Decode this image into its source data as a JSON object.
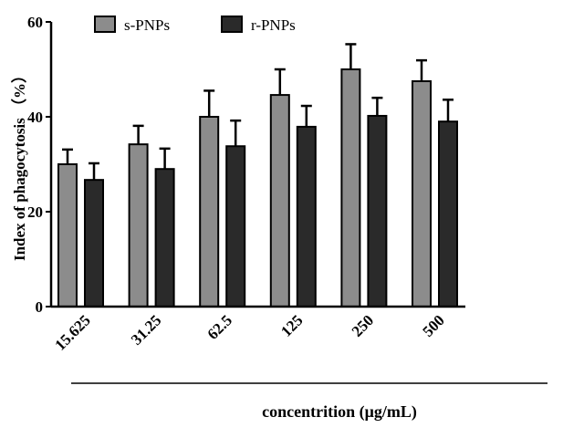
{
  "chart_data": {
    "type": "bar",
    "title": "",
    "xlabel": "concentrition (μg/mL)",
    "ylabel": "Index of phagocytosis （%）",
    "ylim": [
      0,
      60
    ],
    "yticks": [
      0,
      20,
      40,
      60
    ],
    "categories": [
      "15.625",
      "31.25",
      "62.5",
      "125",
      "250",
      "500"
    ],
    "legend_position": "top",
    "grid": false,
    "series": [
      {
        "name": "s-PNPs",
        "color": "#8c8c8c",
        "values": [
          30.0,
          34.2,
          40.0,
          44.6,
          50.0,
          47.5
        ],
        "error": [
          3.1,
          3.9,
          5.5,
          5.4,
          5.3,
          4.4
        ]
      },
      {
        "name": "r-PNPs",
        "color": "#2a2a2a",
        "values": [
          26.7,
          29.0,
          33.8,
          37.9,
          40.2,
          39.0
        ],
        "error": [
          3.5,
          4.3,
          5.4,
          4.4,
          3.8,
          4.6
        ]
      }
    ]
  }
}
